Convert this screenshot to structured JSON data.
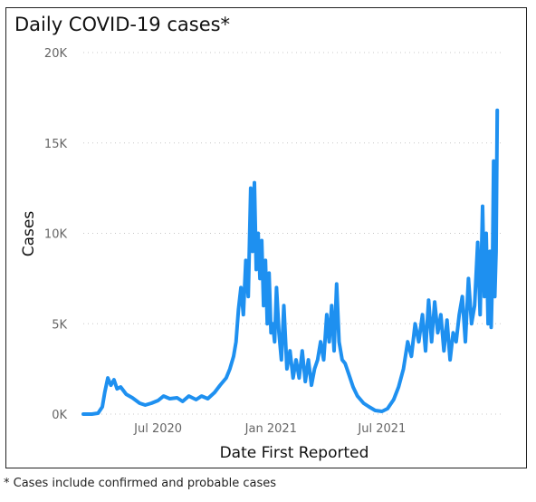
{
  "title": "Daily COVID-19 cases*",
  "footnote": "* Cases include confirmed and probable cases",
  "colors": {
    "series": "#1e90f0",
    "grid": "#c8c8c8",
    "tick_text": "#666666"
  },
  "chart_data": {
    "type": "line",
    "title": "Daily COVID-19 cases*",
    "xlabel": "Date First Reported",
    "ylabel": "Cases",
    "ylim": [
      0,
      20000
    ],
    "yticks": [
      0,
      5000,
      10000,
      15000,
      20000
    ],
    "ytick_labels": [
      "0K",
      "5K",
      "10K",
      "15K",
      "20K"
    ],
    "xlim": [
      "2020-03-01",
      "2022-01-15"
    ],
    "xticks": [
      "2020-07-01",
      "2021-01-01",
      "2021-07-01"
    ],
    "xtick_labels": [
      "Jul 2020",
      "Jan 2021",
      "Jul 2021"
    ],
    "grid": "horizontal dotted",
    "series": [
      {
        "x": [
          "2020-03-01",
          "2020-03-15",
          "2020-03-25",
          "2020-04-01",
          "2020-04-05",
          "2020-04-10",
          "2020-04-15",
          "2020-04-20",
          "2020-04-25",
          "2020-05-01",
          "2020-05-10",
          "2020-05-20",
          "2020-06-01",
          "2020-06-10",
          "2020-06-20",
          "2020-07-01",
          "2020-07-10",
          "2020-07-20",
          "2020-08-01",
          "2020-08-10",
          "2020-08-20",
          "2020-09-01",
          "2020-09-10",
          "2020-09-20",
          "2020-10-01",
          "2020-10-10",
          "2020-10-20",
          "2020-10-26",
          "2020-11-01",
          "2020-11-05",
          "2020-11-09",
          "2020-11-13",
          "2020-11-17",
          "2020-11-21",
          "2020-11-25",
          "2020-11-29",
          "2020-12-02",
          "2020-12-05",
          "2020-12-08",
          "2020-12-11",
          "2020-12-14",
          "2020-12-17",
          "2020-12-20",
          "2020-12-23",
          "2020-12-26",
          "2020-12-29",
          "2021-01-01",
          "2021-01-04",
          "2021-01-07",
          "2021-01-10",
          "2021-01-14",
          "2021-01-18",
          "2021-01-22",
          "2021-01-27",
          "2021-02-01",
          "2021-02-06",
          "2021-02-11",
          "2021-02-16",
          "2021-02-21",
          "2021-02-26",
          "2021-03-03",
          "2021-03-08",
          "2021-03-13",
          "2021-03-18",
          "2021-03-23",
          "2021-03-28",
          "2021-04-02",
          "2021-04-06",
          "2021-04-10",
          "2021-04-14",
          "2021-04-18",
          "2021-04-22",
          "2021-04-27",
          "2021-05-02",
          "2021-05-08",
          "2021-05-15",
          "2021-05-22",
          "2021-06-01",
          "2021-06-10",
          "2021-06-20",
          "2021-07-01",
          "2021-07-10",
          "2021-07-20",
          "2021-07-28",
          "2021-08-05",
          "2021-08-12",
          "2021-08-18",
          "2021-08-24",
          "2021-08-30",
          "2021-09-05",
          "2021-09-10",
          "2021-09-15",
          "2021-09-20",
          "2021-09-25",
          "2021-09-30",
          "2021-10-05",
          "2021-10-10",
          "2021-10-15",
          "2021-10-20",
          "2021-10-25",
          "2021-10-30",
          "2021-11-04",
          "2021-11-09",
          "2021-11-14",
          "2021-11-19",
          "2021-11-24",
          "2021-11-29",
          "2021-12-04",
          "2021-12-08",
          "2021-12-12",
          "2021-12-15",
          "2021-12-18",
          "2021-12-21",
          "2021-12-24",
          "2021-12-26",
          "2021-12-28",
          "2021-12-30",
          "2022-01-01",
          "2022-01-03",
          "2022-01-05"
        ],
        "y": [
          0,
          0,
          50,
          400,
          1200,
          2000,
          1600,
          1900,
          1400,
          1500,
          1100,
          900,
          600,
          500,
          600,
          750,
          1000,
          850,
          900,
          700,
          1000,
          800,
          1000,
          850,
          1200,
          1600,
          2000,
          2500,
          3200,
          4000,
          5800,
          7000,
          5500,
          8500,
          6500,
          12500,
          9000,
          12800,
          8000,
          10000,
          7500,
          9600,
          6000,
          8500,
          5000,
          7800,
          4500,
          5000,
          4000,
          7000,
          4500,
          3000,
          6000,
          2500,
          3500,
          2000,
          3000,
          2000,
          3500,
          1800,
          3000,
          1600,
          2500,
          3000,
          4000,
          3000,
          5500,
          4000,
          6000,
          3500,
          7200,
          4000,
          3000,
          2800,
          2200,
          1500,
          1000,
          600,
          400,
          200,
          150,
          300,
          800,
          1500,
          2500,
          4000,
          3200,
          5000,
          4000,
          5500,
          3500,
          6300,
          4000,
          6200,
          4500,
          5500,
          3500,
          5200,
          3000,
          4500,
          4000,
          5500,
          6500,
          4000,
          7500,
          5000,
          6000,
          9500,
          5500,
          11500,
          6500,
          10000,
          5000,
          9000,
          4800,
          7500,
          14000,
          6500,
          9000,
          16800
        ]
      }
    ]
  }
}
